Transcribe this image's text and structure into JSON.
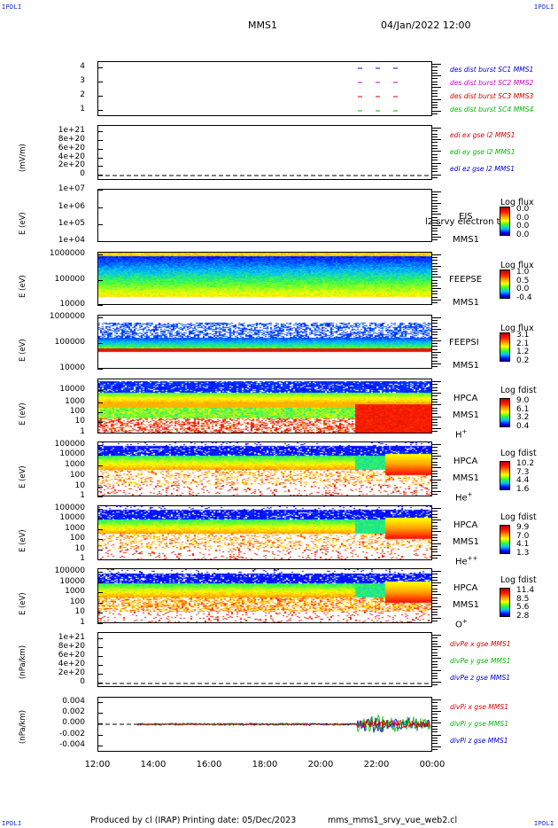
{
  "corner_labels": {
    "tl": "IPDLI",
    "tr": "IPDLI",
    "bl": "IPDLI",
    "br": "IPDLI"
  },
  "header": {
    "title": "MMS1",
    "date": "04/Jan/2022 12:00"
  },
  "footer": {
    "produced": "Produced by cl (IRAP)",
    "printing": "Printing date: 05/Dec/2023",
    "file": "mms_mms1_srvy_vue_web2.cl"
  },
  "colors": {
    "blue": "#0000cc",
    "magenta": "#cc00cc",
    "red": "#dd0000",
    "green": "#00bb00"
  },
  "chart_data": [
    {
      "type": "line",
      "id": "burst",
      "yticks": [
        "4",
        "3",
        "2",
        "1"
      ],
      "series": [
        {
          "name": "des dist burst SC1 MMS1",
          "y": 4,
          "color": "#0000cc"
        },
        {
          "name": "des dist burst SC2 MMS2",
          "y": 3,
          "color": "#cc00cc"
        },
        {
          "name": "des dist burst SC3 MMS3",
          "y": 2,
          "color": "#dd0000"
        },
        {
          "name": "des dist burst SC4 MMS4",
          "y": 1,
          "color": "#00bb00"
        }
      ]
    },
    {
      "type": "line",
      "id": "edi",
      "ylabel": "(mV/m)",
      "yticks": [
        "1e+21",
        "8e+20",
        "6e+20",
        "4e+20",
        "2e+20",
        "0"
      ],
      "series": [
        {
          "name": "edi ex gse l2 MMS1",
          "color": "#dd0000"
        },
        {
          "name": "edi ey gse l2 MMS1",
          "color": "#00bb00"
        },
        {
          "name": "edi ez gse l2 MMS1",
          "color": "#0000cc"
        }
      ]
    },
    {
      "type": "heatmap",
      "id": "eis",
      "ylabel": "E (eV)",
      "yticks": [
        "1e+07",
        "1e+06",
        "1e+05",
        "1e+04"
      ],
      "instrument": "EIS",
      "extra": "l2 srvy electron tof",
      "sc": "MMS1",
      "cbar_title": "Log flux",
      "cbar_ticks": [
        "0.0",
        "0.0",
        "0.0",
        "0.0"
      ]
    },
    {
      "type": "heatmap",
      "id": "feepse",
      "ylabel": "E (eV)",
      "yticks": [
        "1000000",
        "100000",
        "10000"
      ],
      "instrument": "FEEPSE",
      "sc": "MMS1",
      "cbar_title": "Log flux",
      "cbar_ticks": [
        "1.0",
        "0.5",
        "0.0",
        "-0.4"
      ]
    },
    {
      "type": "heatmap",
      "id": "feepsi",
      "ylabel": "E (eV)",
      "yticks": [
        "1000000",
        "100000",
        "10000"
      ],
      "instrument": "FEEPSI",
      "sc": "MMS1",
      "cbar_title": "Log flux",
      "cbar_ticks": [
        "3.1",
        "2.1",
        "1.2",
        "0.2"
      ]
    },
    {
      "type": "heatmap",
      "id": "hpca_h",
      "ylabel": "E (eV)",
      "yticks": [
        "10000",
        "1000",
        "100",
        "10",
        "1"
      ],
      "instrument": "HPCA",
      "sc": "MMS1",
      "species": "H",
      "charge": "+",
      "cbar_title": "Log fdist",
      "cbar_ticks": [
        "9.0",
        "6.1",
        "3.2",
        "0.4"
      ]
    },
    {
      "type": "heatmap",
      "id": "hpca_he",
      "ylabel": "E (eV)",
      "yticks": [
        "100000",
        "10000",
        "1000",
        "100",
        "10",
        "1"
      ],
      "instrument": "HPCA",
      "sc": "MMS1",
      "species": "He",
      "charge": "+",
      "cbar_title": "Log fdist",
      "cbar_ticks": [
        "10.2",
        "7.3",
        "4.4",
        "1.6"
      ]
    },
    {
      "type": "heatmap",
      "id": "hpca_hepp",
      "ylabel": "E (eV)",
      "yticks": [
        "100000",
        "10000",
        "1000",
        "100",
        "10",
        "1"
      ],
      "instrument": "HPCA",
      "sc": "MMS1",
      "species": "He",
      "charge": "++",
      "cbar_title": "Log fdist",
      "cbar_ticks": [
        "9.9",
        "7.0",
        "4.1",
        "1.3"
      ]
    },
    {
      "type": "heatmap",
      "id": "hpca_o",
      "ylabel": "E (eV)",
      "yticks": [
        "100000",
        "10000",
        "1000",
        "100",
        "10",
        "1"
      ],
      "instrument": "HPCA",
      "sc": "MMS1",
      "species": "O",
      "charge": "+",
      "cbar_title": "Log fdist",
      "cbar_ticks": [
        "11.4",
        "8.5",
        "5.6",
        "2.8"
      ]
    },
    {
      "type": "line",
      "id": "divpe",
      "ylabel": "(nPa/km)",
      "yticks": [
        "1e+21",
        "8e+20",
        "6e+20",
        "4e+20",
        "2e+20",
        "0"
      ],
      "series": [
        {
          "name": "divPe x gse MMS1",
          "color": "#dd0000"
        },
        {
          "name": "divPe y gse MMS1",
          "color": "#00bb00"
        },
        {
          "name": "divPe z gse MMS1",
          "color": "#0000cc"
        }
      ]
    },
    {
      "type": "line",
      "id": "divpi",
      "ylabel": "(nPa/km)",
      "yticks": [
        "0.004",
        "0.002",
        "0.000",
        "-0.002",
        "-0.004"
      ],
      "series": [
        {
          "name": "divPi x gse MMS1",
          "color": "#dd0000"
        },
        {
          "name": "divPi y gse MMS1",
          "color": "#00bb00"
        },
        {
          "name": "divPi z gse MMS1",
          "color": "#0000cc"
        }
      ]
    }
  ],
  "x_ticks": [
    "12:00",
    "14:00",
    "16:00",
    "18:00",
    "20:00",
    "22:00",
    "00:00"
  ]
}
